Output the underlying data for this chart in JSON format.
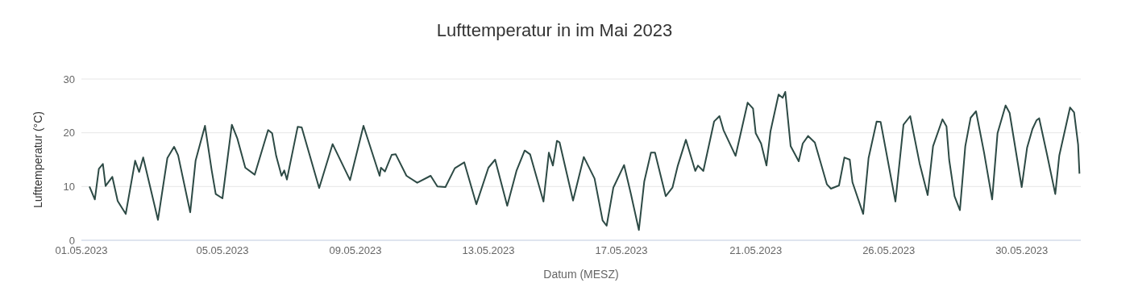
{
  "chart_data": {
    "type": "line",
    "title": "Lufttemperatur in im Mai 2023",
    "xlabel": "Datum (MESZ)",
    "ylabel": "Lufttemperatur (°C)",
    "x": [
      "2023-05-01T06:00",
      "2023-05-01T10:00",
      "2023-05-01T13:00",
      "2023-05-01T16:00",
      "2023-05-01T18:00",
      "2023-05-01T23:00",
      "2023-05-02T03:00",
      "2023-05-02T09:00",
      "2023-05-02T16:00",
      "2023-05-02T19:00",
      "2023-05-02T22:00",
      "2023-05-03T09:00",
      "2023-05-03T16:00",
      "2023-05-03T21:00",
      "2023-05-04T00:00",
      "2023-05-04T09:00",
      "2023-05-04T13:00",
      "2023-05-04T20:00",
      "2023-05-05T01:00",
      "2023-05-05T04:00",
      "2023-05-05T09:00",
      "2023-05-05T16:00",
      "2023-05-05T20:00",
      "2023-05-06T02:00",
      "2023-05-06T09:00",
      "2023-05-06T19:00",
      "2023-05-06T22:00",
      "2023-05-07T01:00",
      "2023-05-07T05:00",
      "2023-05-07T07:00",
      "2023-05-07T09:00",
      "2023-05-07T17:00",
      "2023-05-07T20:00",
      "2023-05-08T09:00",
      "2023-05-08T19:00",
      "2023-05-09T08:00",
      "2023-05-09T18:00",
      "2023-05-10T06:00",
      "2023-05-10T07:00",
      "2023-05-10T10:00",
      "2023-05-10T15:00",
      "2023-05-10T18:00",
      "2023-05-11T02:00",
      "2023-05-11T10:00",
      "2023-05-11T20:00",
      "2023-05-12T01:00",
      "2023-05-12T07:00",
      "2023-05-12T14:00",
      "2023-05-12T21:00",
      "2023-05-13T06:00",
      "2023-05-13T15:00",
      "2023-05-13T20:00",
      "2023-05-14T05:00",
      "2023-05-14T12:00",
      "2023-05-14T18:00",
      "2023-05-14T22:00",
      "2023-05-15T08:00",
      "2023-05-15T12:00",
      "2023-05-15T15:00",
      "2023-05-15T18:00",
      "2023-05-15T20:00",
      "2023-05-16T06:00",
      "2023-05-16T14:00",
      "2023-05-16T22:00",
      "2023-05-17T04:00",
      "2023-05-17T07:00",
      "2023-05-17T12:00",
      "2023-05-17T20:00",
      "2023-05-18T01:00",
      "2023-05-18T07:00",
      "2023-05-18T11:00",
      "2023-05-18T16:00",
      "2023-05-18T19:00",
      "2023-05-19T03:00",
      "2023-05-19T08:00",
      "2023-05-19T12:00",
      "2023-05-19T18:00",
      "2023-05-20T01:00",
      "2023-05-20T03:00",
      "2023-05-20T07:00",
      "2023-05-20T15:00",
      "2023-05-20T19:00",
      "2023-05-20T22:00",
      "2023-05-21T07:00",
      "2023-05-21T16:00",
      "2023-05-21T20:00",
      "2023-05-21T22:00",
      "2023-05-22T02:00",
      "2023-05-22T06:00",
      "2023-05-22T09:00",
      "2023-05-22T15:00",
      "2023-05-22T18:00",
      "2023-05-22T20:00",
      "2023-05-23T00:00",
      "2023-05-23T06:00",
      "2023-05-23T09:00",
      "2023-05-23T13:00",
      "2023-05-23T18:00",
      "2023-05-24T03:00",
      "2023-05-24T06:00",
      "2023-05-24T12:00",
      "2023-05-24T16:00",
      "2023-05-24T20:00",
      "2023-05-24T22:00",
      "2023-05-25T06:00",
      "2023-05-25T10:00",
      "2023-05-25T16:00",
      "2023-05-25T19:00",
      "2023-05-26T06:00",
      "2023-05-26T12:00",
      "2023-05-26T17:00",
      "2023-05-27T00:00",
      "2023-05-27T06:00",
      "2023-05-27T10:00",
      "2023-05-27T17:00",
      "2023-05-27T20:00",
      "2023-05-27T22:00",
      "2023-05-28T02:00",
      "2023-05-28T06:00",
      "2023-05-28T10:00",
      "2023-05-28T14:00",
      "2023-05-28T18:00",
      "2023-05-29T00:00",
      "2023-05-29T06:00",
      "2023-05-29T10:00",
      "2023-05-29T16:00",
      "2023-05-29T19:00",
      "2023-05-30T04:00",
      "2023-05-30T08:00",
      "2023-05-30T12:00",
      "2023-05-30T15:00",
      "2023-05-30T17:00",
      "2023-05-30T23:00",
      "2023-05-31T05:00",
      "2023-05-31T08:00",
      "2023-05-31T16:00",
      "2023-05-31T19:00",
      "2023-05-31T22:00",
      "2023-05-31T23:00"
    ],
    "series": [
      {
        "color": "#2d4a45",
        "values": [
          10,
          7.6,
          13.3,
          14.2,
          10.1,
          11.8,
          7.3,
          4.9,
          14.8,
          12.7,
          15.4,
          3.8,
          15.3,
          17.4,
          15.8,
          5.2,
          14.8,
          21.3,
          13,
          8.6,
          7.8,
          21.5,
          19,
          13.5,
          12.2,
          20.5,
          19.9,
          15.7,
          12,
          13,
          11.3,
          21.1,
          21,
          9.7,
          17.9,
          11.2,
          21.3,
          12,
          13.5,
          12.8,
          15.9,
          16,
          12,
          10.7,
          12,
          10,
          9.9,
          13.4,
          14.5,
          6.7,
          13.5,
          15,
          6.4,
          13,
          16.7,
          16,
          7.2,
          16.3,
          13.9,
          18.5,
          18.2,
          7.4,
          15.5,
          11.5,
          3.7,
          2.7,
          9.8,
          14,
          8.7,
          1.9,
          10.9,
          16.3,
          16.3,
          8.2,
          9.8,
          13.9,
          18.7,
          12.9,
          13.9,
          12.9,
          22.1,
          23.1,
          20.5,
          15.7,
          25.6,
          24.5,
          19.9,
          18,
          13.9,
          20.3,
          27.1,
          26.5,
          27.6,
          17.5,
          14.7,
          18,
          19.4,
          18.2,
          10.4,
          9.6,
          10.2,
          15.4,
          15,
          10.8,
          4.9,
          15.3,
          22.1,
          22,
          7.2,
          21.5,
          23.1,
          14.3,
          8.4,
          17.5,
          22.5,
          21.2,
          15,
          8.2,
          5.6,
          17.5,
          22.8,
          24,
          16.3,
          7.6,
          19.9,
          25.1,
          23.7,
          9.9,
          17.2,
          20.7,
          22.3,
          22.7,
          15.8,
          8.6,
          15.8,
          24.7,
          23.8,
          17.8,
          12.4
        ]
      }
    ],
    "xlim": [
      "2023-05-01T00:00",
      "2023-06-01T00:00"
    ],
    "xticks": [
      {
        "value": "2023-05-01T00:00",
        "label": "01.05.2023"
      },
      {
        "value": "2023-05-05T09:00",
        "label": "05.05.2023"
      },
      {
        "value": "2023-05-09T12:00",
        "label": "09.05.2023"
      },
      {
        "value": "2023-05-13T15:00",
        "label": "13.05.2023"
      },
      {
        "value": "2023-05-17T18:00",
        "label": "17.05.2023"
      },
      {
        "value": "2023-05-21T22:00",
        "label": "21.05.2023"
      },
      {
        "value": "2023-05-26T01:00",
        "label": "26.05.2023"
      },
      {
        "value": "2023-05-30T04:00",
        "label": "30.05.2023"
      }
    ],
    "ylim": [
      0,
      30
    ],
    "yticks": [
      0,
      10,
      20,
      30
    ],
    "grid": "y",
    "legend": false,
    "marker": "none",
    "line_style": "solid"
  }
}
